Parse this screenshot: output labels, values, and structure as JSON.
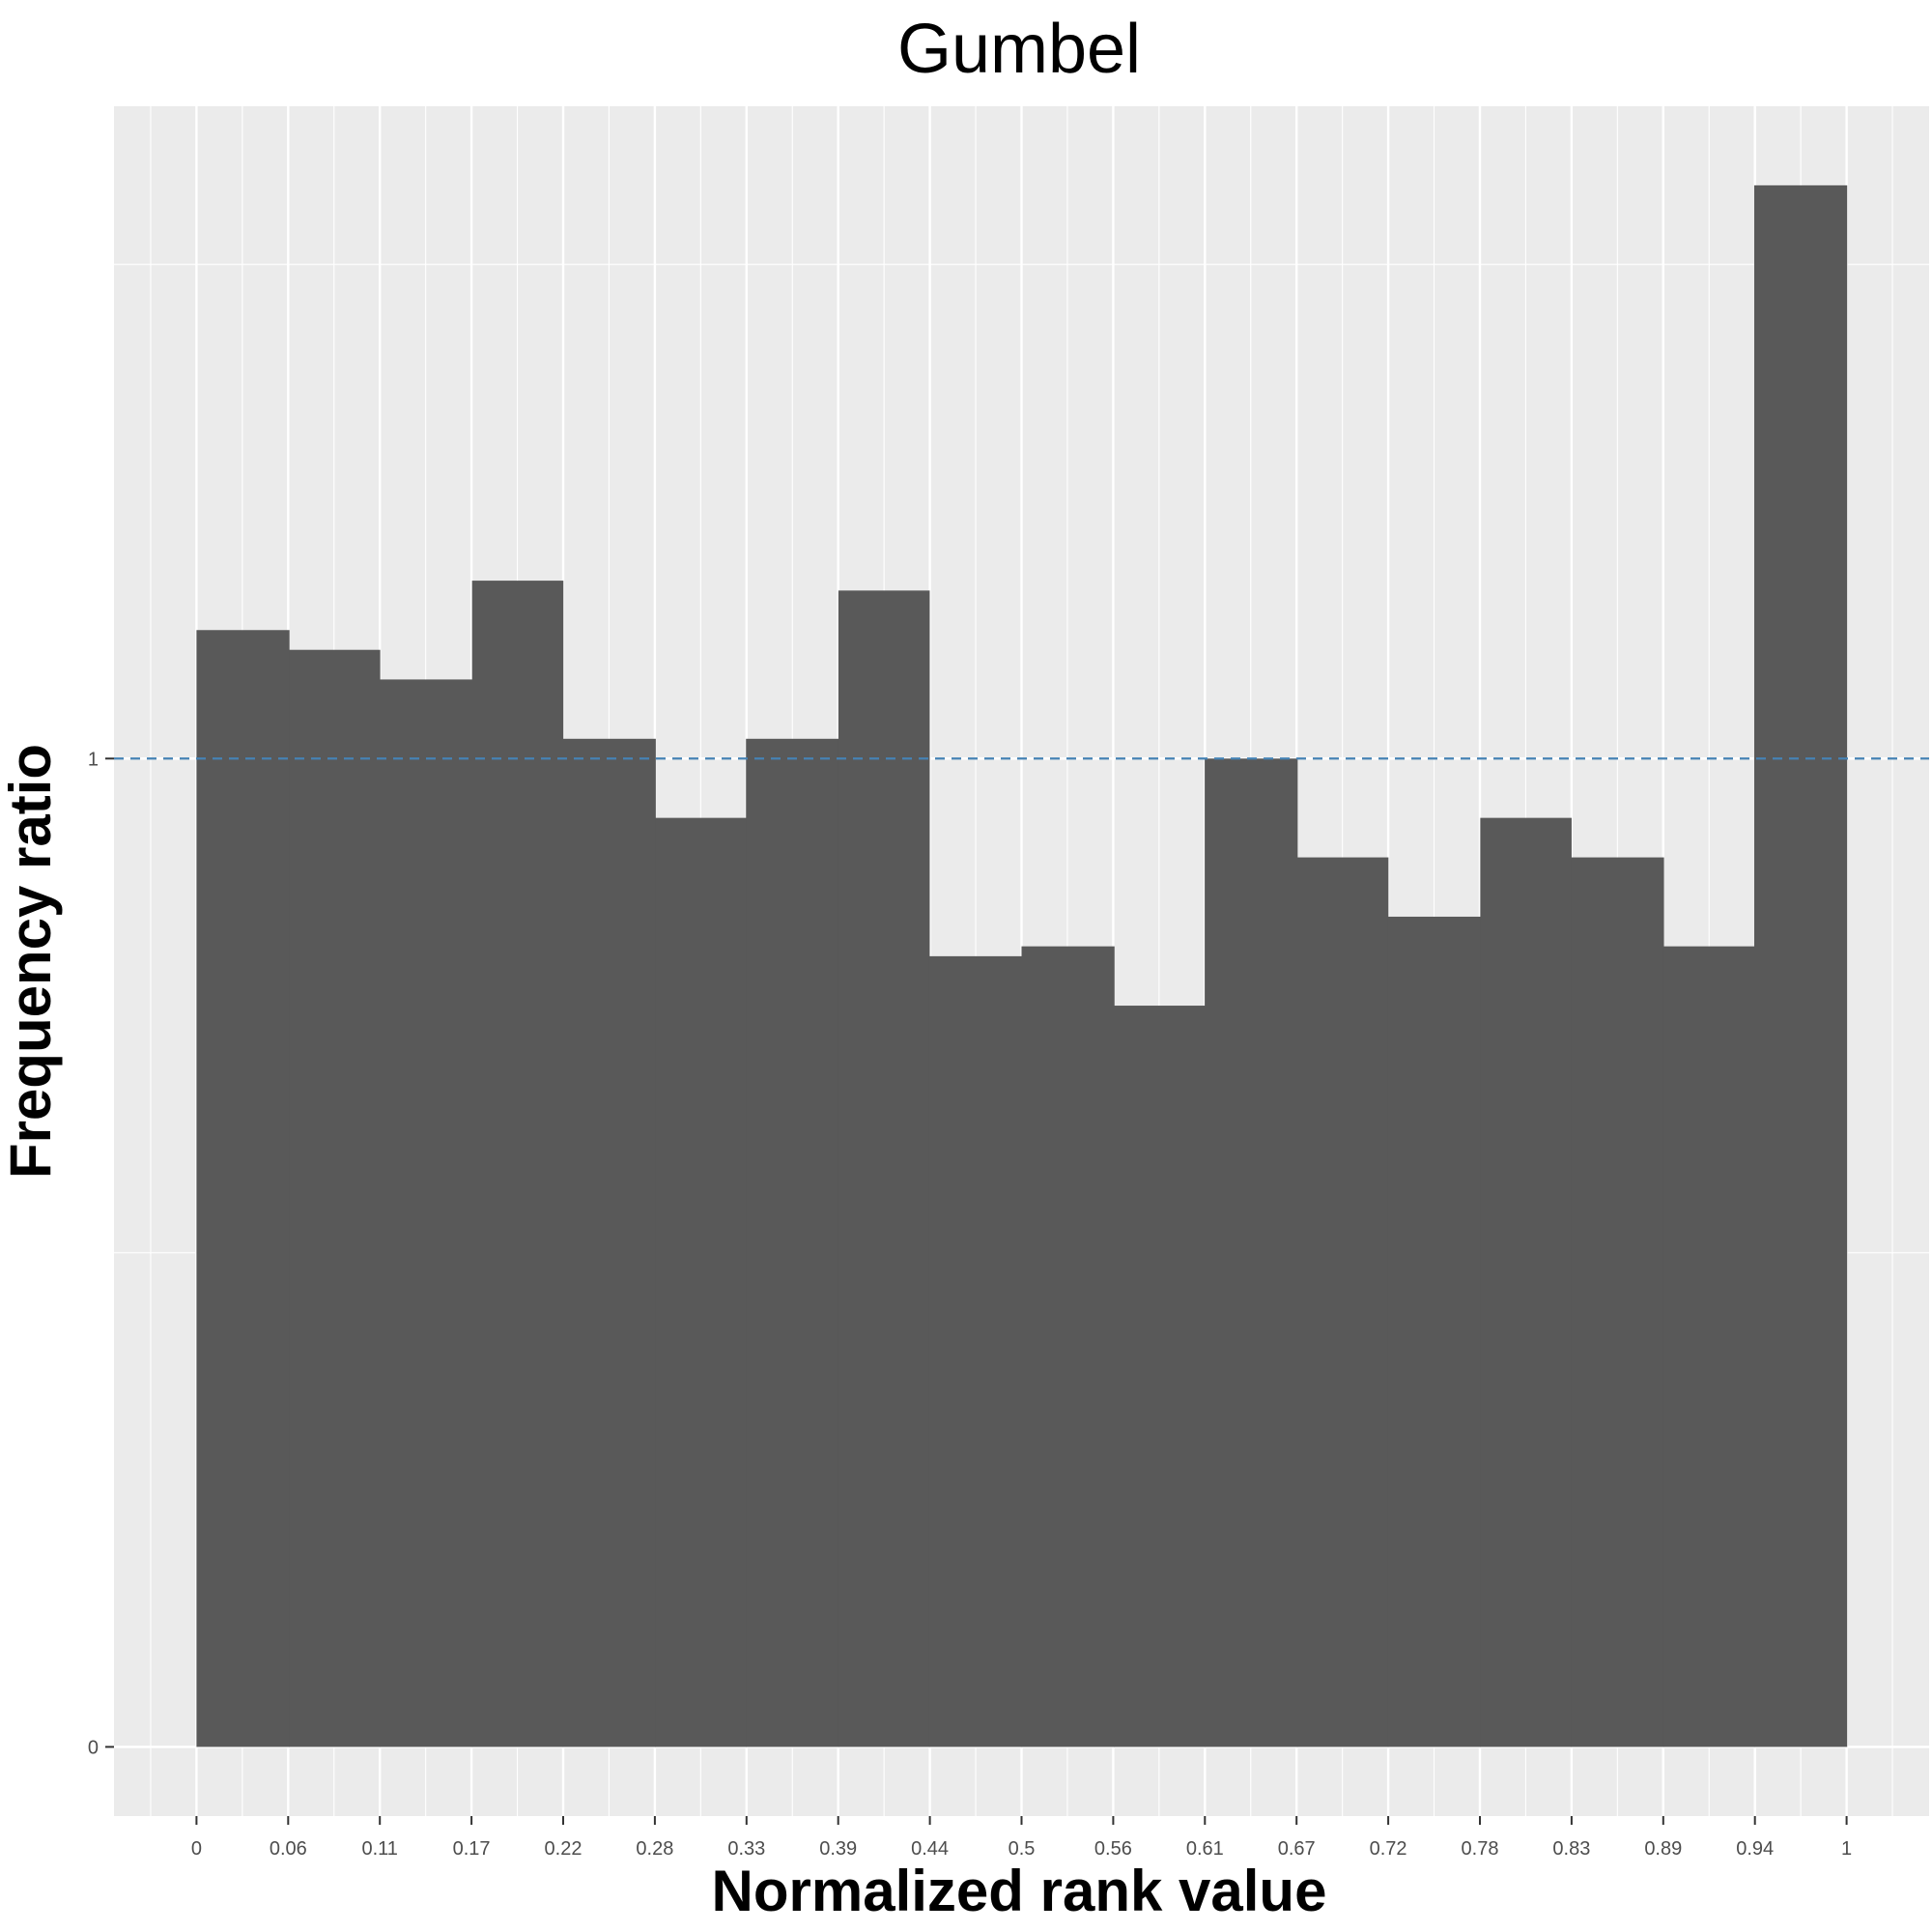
{
  "chart_data": {
    "type": "bar",
    "title": "Gumbel",
    "xlabel": "Normalized rank value",
    "ylabel": "Frequency ratio",
    "x_ticks": [
      "0",
      "0.06",
      "0.11",
      "0.17",
      "0.22",
      "0.28",
      "0.33",
      "0.39",
      "0.44",
      "0.5",
      "0.56",
      "0.61",
      "0.67",
      "0.72",
      "0.78",
      "0.83",
      "0.89",
      "0.94",
      "1"
    ],
    "y_ticks": [
      "0",
      "1"
    ],
    "bins": [
      [
        0,
        0.056
      ],
      [
        0.056,
        0.111
      ],
      [
        0.111,
        0.167
      ],
      [
        0.167,
        0.222
      ],
      [
        0.222,
        0.278
      ],
      [
        0.278,
        0.333
      ],
      [
        0.333,
        0.389
      ],
      [
        0.389,
        0.444
      ],
      [
        0.444,
        0.5
      ],
      [
        0.5,
        0.556
      ],
      [
        0.556,
        0.611
      ],
      [
        0.611,
        0.667
      ],
      [
        0.667,
        0.722
      ],
      [
        0.722,
        0.778
      ],
      [
        0.778,
        0.833
      ],
      [
        0.833,
        0.889
      ],
      [
        0.889,
        0.944
      ],
      [
        0.944,
        1
      ]
    ],
    "values": [
      1.13,
      1.11,
      1.08,
      1.18,
      1.02,
      0.94,
      1.02,
      1.17,
      0.8,
      0.81,
      0.75,
      1.0,
      0.9,
      0.84,
      0.94,
      0.9,
      0.81,
      1.58
    ],
    "xlim": [
      -0.05,
      1.05
    ],
    "ylim": [
      -0.07,
      1.66
    ],
    "reference_line": {
      "y": 1,
      "style": "dashed",
      "color": "#4682b4"
    },
    "grid": true,
    "colors": {
      "bar": "#595959",
      "panel": "#ebebeb",
      "grid": "#ffffff",
      "text": "#000000",
      "tick_text": "#4d4d4d"
    }
  }
}
